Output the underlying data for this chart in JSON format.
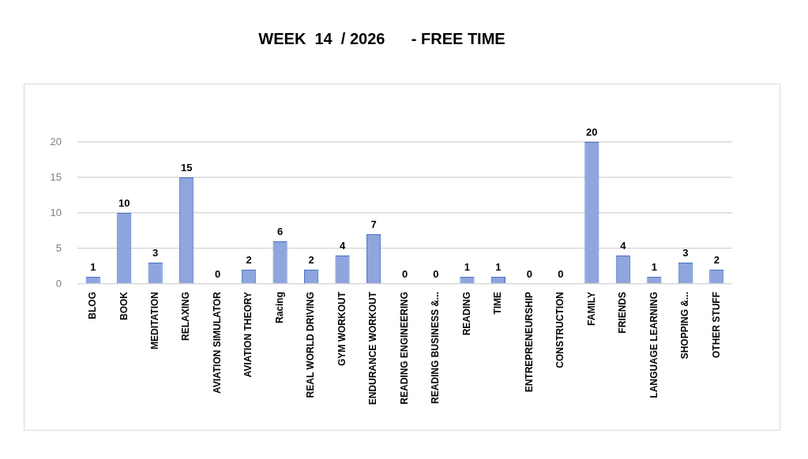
{
  "chart_data": {
    "type": "bar",
    "title": "WEEK  14  / 2026      - FREE TIME",
    "categories": [
      "BLOG",
      "BOOK",
      "MEDITATION",
      "RELAXING",
      "AVIATION SIMULATOR",
      "AVIATION THEORY",
      "Racing",
      "REAL WORLD DRIVING",
      "GYM WORKOUT",
      "ENDURANCE WORKOUT",
      "READING ENGINEERING",
      "READING BUSINESS &...",
      "READING",
      "TIME",
      "ENTREPRENEURSHIP",
      "CONSTRUCTION",
      "FAMILY",
      "FRIENDS",
      "LANGUAGE LEARNING",
      "SHOPPING &...",
      "OTHER STUFF"
    ],
    "values": [
      1,
      10,
      3,
      15,
      0,
      2,
      6,
      2,
      4,
      7,
      0,
      0,
      1,
      1,
      0,
      0,
      20,
      4,
      1,
      3,
      2
    ],
    "color": "#8fa5dd",
    "ylim": [
      0,
      20
    ],
    "yticks": [
      0,
      5,
      10,
      15,
      20
    ],
    "grid": "y",
    "data_labels": true
  }
}
